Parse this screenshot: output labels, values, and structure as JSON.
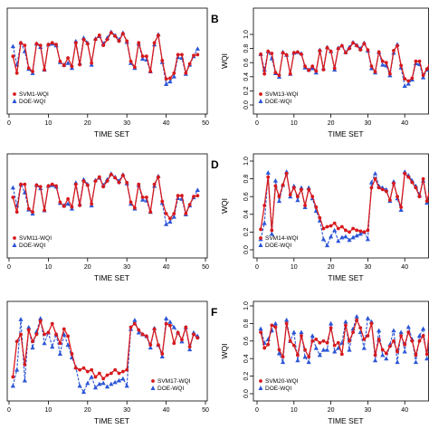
{
  "colors": {
    "svm": "#d7191c",
    "doe": "#2b55d6",
    "axis": "#000000",
    "background": "#ffffff"
  },
  "chart_data": [
    {
      "type": "line",
      "panel_label": "",
      "xlabel": "TIME SET",
      "ylabel": "",
      "xlim": [
        0,
        50
      ],
      "ylim": [
        0,
        1
      ],
      "xticks": [
        "0",
        "10",
        "20",
        "30",
        "40",
        "50"
      ],
      "yticks": [],
      "legend": {
        "position": "bottom-left"
      },
      "x": [
        1,
        2,
        3,
        4,
        5,
        6,
        7,
        8,
        9,
        10,
        11,
        12,
        13,
        14,
        15,
        16,
        17,
        18,
        19,
        20,
        21,
        22,
        23,
        24,
        25,
        26,
        27,
        28,
        29,
        30,
        31,
        32,
        33,
        34,
        35,
        36,
        37,
        38,
        39,
        40,
        41,
        42,
        43,
        44,
        45,
        46,
        47,
        48
      ],
      "series": [
        {
          "name": "SVM1-WQI",
          "marker": "circle",
          "color": "#d7191c",
          "values": [
            0.6,
            0.4,
            0.76,
            0.73,
            0.46,
            0.42,
            0.75,
            0.73,
            0.44,
            0.74,
            0.76,
            0.74,
            0.54,
            0.49,
            0.58,
            0.48,
            0.76,
            0.5,
            0.8,
            0.75,
            0.52,
            0.8,
            0.85,
            0.73,
            0.8,
            0.88,
            0.84,
            0.78,
            0.87,
            0.78,
            0.54,
            0.47,
            0.76,
            0.6,
            0.6,
            0.42,
            0.76,
            0.85,
            0.55,
            0.33,
            0.34,
            0.4,
            0.62,
            0.62,
            0.4,
            0.51,
            0.61,
            0.62
          ]
        },
        {
          "name": "DOE-WQI",
          "marker": "triangle",
          "color": "#2b55d6",
          "values": [
            0.72,
            0.5,
            0.76,
            0.66,
            0.45,
            0.4,
            0.75,
            0.71,
            0.44,
            0.74,
            0.75,
            0.73,
            0.53,
            0.5,
            0.52,
            0.46,
            0.78,
            0.52,
            0.82,
            0.76,
            0.5,
            0.81,
            0.84,
            0.75,
            0.82,
            0.89,
            0.85,
            0.8,
            0.88,
            0.77,
            0.52,
            0.46,
            0.75,
            0.57,
            0.56,
            0.42,
            0.74,
            0.86,
            0.53,
            0.27,
            0.3,
            0.36,
            0.59,
            0.58,
            0.39,
            0.5,
            0.6,
            0.69
          ]
        }
      ]
    },
    {
      "type": "line",
      "panel_label": "B",
      "xlabel": "TIME SET",
      "ylabel": "WQI",
      "xlim": [
        0,
        50
      ],
      "ylim": [
        0,
        1
      ],
      "xticks": [
        "0",
        "10",
        "20",
        "30",
        "40",
        "50"
      ],
      "yticks": [
        "0.0",
        "0.2",
        "0.4",
        "0.6",
        "0.8",
        "1.0"
      ],
      "legend": {
        "position": "bottom-left"
      },
      "x": [
        1,
        2,
        3,
        4,
        5,
        6,
        7,
        8,
        9,
        10,
        11,
        12,
        13,
        14,
        15,
        16,
        17,
        18,
        19,
        20,
        21,
        22,
        23,
        24,
        25,
        26,
        27,
        28,
        29,
        30,
        31,
        32,
        33,
        34,
        35,
        36,
        37,
        38,
        39,
        40,
        41,
        42,
        43,
        44,
        45,
        46,
        47,
        48
      ],
      "series": [
        {
          "name": "SVM13-WQI",
          "marker": "circle",
          "color": "#d7191c",
          "values": [
            0.72,
            0.44,
            0.76,
            0.73,
            0.46,
            0.42,
            0.74,
            0.71,
            0.44,
            0.74,
            0.75,
            0.72,
            0.55,
            0.49,
            0.55,
            0.48,
            0.77,
            0.5,
            0.81,
            0.76,
            0.52,
            0.8,
            0.84,
            0.74,
            0.8,
            0.88,
            0.84,
            0.78,
            0.87,
            0.78,
            0.55,
            0.47,
            0.75,
            0.62,
            0.6,
            0.44,
            0.77,
            0.84,
            0.56,
            0.37,
            0.34,
            0.38,
            0.62,
            0.62,
            0.42,
            0.51,
            0.61,
            0.63
          ]
        },
        {
          "name": "DOE-WQI",
          "marker": "triangle",
          "color": "#2b55d6",
          "values": [
            0.72,
            0.5,
            0.76,
            0.66,
            0.45,
            0.4,
            0.75,
            0.71,
            0.44,
            0.74,
            0.75,
            0.73,
            0.53,
            0.5,
            0.52,
            0.46,
            0.78,
            0.52,
            0.82,
            0.76,
            0.5,
            0.81,
            0.84,
            0.75,
            0.82,
            0.89,
            0.85,
            0.8,
            0.88,
            0.77,
            0.52,
            0.46,
            0.75,
            0.57,
            0.56,
            0.42,
            0.74,
            0.86,
            0.53,
            0.27,
            0.3,
            0.36,
            0.59,
            0.58,
            0.39,
            0.5,
            0.6,
            0.69
          ]
        }
      ]
    },
    {
      "type": "line",
      "panel_label": "",
      "xlabel": "TIME SET",
      "ylabel": "",
      "xlim": [
        0,
        50
      ],
      "ylim": [
        0,
        1
      ],
      "xticks": [
        "0",
        "10",
        "20",
        "30",
        "40",
        "50"
      ],
      "yticks": [],
      "legend": {
        "position": "bottom-left"
      },
      "x": [
        1,
        2,
        3,
        4,
        5,
        6,
        7,
        8,
        9,
        10,
        11,
        12,
        13,
        14,
        15,
        16,
        17,
        18,
        19,
        20,
        21,
        22,
        23,
        24,
        25,
        26,
        27,
        28,
        29,
        30,
        31,
        32,
        33,
        34,
        35,
        36,
        37,
        38,
        39,
        40,
        41,
        42,
        43,
        44,
        45,
        46,
        47,
        48
      ],
      "series": [
        {
          "name": "SVM11-WQI",
          "marker": "circle",
          "color": "#d7191c",
          "values": [
            0.6,
            0.42,
            0.76,
            0.76,
            0.46,
            0.42,
            0.75,
            0.73,
            0.44,
            0.74,
            0.76,
            0.74,
            0.54,
            0.49,
            0.58,
            0.48,
            0.76,
            0.5,
            0.8,
            0.75,
            0.52,
            0.8,
            0.85,
            0.73,
            0.8,
            0.88,
            0.84,
            0.78,
            0.87,
            0.78,
            0.54,
            0.47,
            0.76,
            0.6,
            0.6,
            0.42,
            0.76,
            0.85,
            0.55,
            0.4,
            0.34,
            0.4,
            0.62,
            0.62,
            0.4,
            0.51,
            0.61,
            0.62
          ]
        },
        {
          "name": "DOE-WQI",
          "marker": "triangle",
          "color": "#2b55d6",
          "values": [
            0.72,
            0.5,
            0.76,
            0.66,
            0.45,
            0.4,
            0.75,
            0.71,
            0.44,
            0.74,
            0.75,
            0.73,
            0.53,
            0.5,
            0.52,
            0.46,
            0.78,
            0.52,
            0.82,
            0.76,
            0.5,
            0.81,
            0.84,
            0.75,
            0.82,
            0.89,
            0.85,
            0.8,
            0.88,
            0.77,
            0.52,
            0.46,
            0.75,
            0.57,
            0.56,
            0.42,
            0.74,
            0.86,
            0.53,
            0.27,
            0.3,
            0.36,
            0.59,
            0.58,
            0.39,
            0.5,
            0.6,
            0.69
          ]
        }
      ]
    },
    {
      "type": "line",
      "panel_label": "D",
      "xlabel": "TIME SET",
      "ylabel": "WQI",
      "xlim": [
        0,
        50
      ],
      "ylim": [
        0,
        1
      ],
      "xticks": [
        "0",
        "10",
        "20",
        "30",
        "40",
        "50"
      ],
      "yticks": [
        "0.0",
        "0.2",
        "0.4",
        "0.6",
        "0.8",
        "1.0"
      ],
      "legend": {
        "position": "bottom-left"
      },
      "x": [
        1,
        2,
        3,
        4,
        5,
        6,
        7,
        8,
        9,
        10,
        11,
        12,
        13,
        14,
        15,
        16,
        17,
        18,
        19,
        20,
        21,
        22,
        23,
        24,
        25,
        26,
        27,
        28,
        29,
        30,
        31,
        32,
        33,
        34,
        35,
        36,
        37,
        38,
        39,
        40,
        41,
        42,
        43,
        44,
        45,
        46,
        47,
        48
      ],
      "series": [
        {
          "name": "SVM14-WQI",
          "marker": "circle",
          "color": "#d7191c",
          "values": [
            0.23,
            0.5,
            0.82,
            0.22,
            0.72,
            0.6,
            0.73,
            0.86,
            0.62,
            0.7,
            0.6,
            0.68,
            0.5,
            0.68,
            0.6,
            0.48,
            0.36,
            0.24,
            0.26,
            0.27,
            0.3,
            0.24,
            0.26,
            0.22,
            0.2,
            0.24,
            0.22,
            0.21,
            0.2,
            0.22,
            0.7,
            0.8,
            0.7,
            0.68,
            0.66,
            0.56,
            0.75,
            0.6,
            0.48,
            0.86,
            0.82,
            0.76,
            0.7,
            0.6,
            0.8,
            0.55,
            0.7,
            0.52
          ]
        },
        {
          "name": "DOE-WQI",
          "marker": "triangle",
          "color": "#2b55d6",
          "values": [
            0.12,
            0.3,
            0.87,
            0.18,
            0.78,
            0.55,
            0.73,
            0.88,
            0.6,
            0.72,
            0.56,
            0.7,
            0.48,
            0.7,
            0.58,
            0.44,
            0.33,
            0.12,
            0.05,
            0.15,
            0.22,
            0.1,
            0.14,
            0.15,
            0.11,
            0.14,
            0.16,
            0.18,
            0.2,
            0.12,
            0.76,
            0.86,
            0.72,
            0.7,
            0.68,
            0.55,
            0.77,
            0.58,
            0.45,
            0.88,
            0.84,
            0.78,
            0.72,
            0.62,
            0.78,
            0.53,
            0.72,
            0.4
          ]
        }
      ]
    },
    {
      "type": "line",
      "panel_label": "",
      "xlabel": "TIME SET",
      "ylabel": "",
      "xlim": [
        0,
        50
      ],
      "ylim": [
        0,
        1
      ],
      "xticks": [
        "0",
        "10",
        "20",
        "30",
        "40",
        "50"
      ],
      "yticks": [],
      "legend": {
        "position": "bottom-right"
      },
      "x": [
        1,
        2,
        3,
        4,
        5,
        6,
        7,
        8,
        9,
        10,
        11,
        12,
        13,
        14,
        15,
        16,
        17,
        18,
        19,
        20,
        21,
        22,
        23,
        24,
        25,
        26,
        27,
        28,
        29,
        30,
        31,
        32,
        33,
        34,
        35,
        36,
        37,
        38,
        39,
        40,
        41,
        42,
        43,
        44,
        45,
        46,
        47,
        48
      ],
      "series": [
        {
          "name": "SVM17-WQI",
          "marker": "circle",
          "color": "#d7191c",
          "values": [
            0.22,
            0.62,
            0.7,
            0.36,
            0.75,
            0.62,
            0.7,
            0.85,
            0.7,
            0.72,
            0.82,
            0.7,
            0.6,
            0.76,
            0.68,
            0.48,
            0.32,
            0.3,
            0.32,
            0.28,
            0.3,
            0.22,
            0.26,
            0.2,
            0.24,
            0.26,
            0.3,
            0.26,
            0.28,
            0.3,
            0.78,
            0.82,
            0.75,
            0.7,
            0.68,
            0.58,
            0.76,
            0.58,
            0.48,
            0.82,
            0.8,
            0.6,
            0.72,
            0.64,
            0.78,
            0.56,
            0.7,
            0.66
          ]
        },
        {
          "name": "DOE-WQI",
          "marker": "triangle",
          "color": "#2b55d6",
          "values": [
            0.12,
            0.3,
            0.87,
            0.18,
            0.78,
            0.55,
            0.73,
            0.88,
            0.6,
            0.72,
            0.56,
            0.7,
            0.48,
            0.7,
            0.58,
            0.44,
            0.33,
            0.12,
            0.05,
            0.15,
            0.22,
            0.1,
            0.14,
            0.15,
            0.11,
            0.14,
            0.16,
            0.18,
            0.2,
            0.12,
            0.76,
            0.86,
            0.72,
            0.7,
            0.68,
            0.55,
            0.77,
            0.58,
            0.45,
            0.88,
            0.84,
            0.78,
            0.72,
            0.62,
            0.78,
            0.53,
            0.72,
            0.68
          ]
        }
      ]
    },
    {
      "type": "line",
      "panel_label": "F",
      "xlabel": "TIME SET",
      "ylabel": "WQI",
      "xlim": [
        0,
        50
      ],
      "ylim": [
        0,
        1
      ],
      "xticks": [
        "0",
        "10",
        "20",
        "30",
        "40",
        "50"
      ],
      "yticks": [
        "0.0",
        "0.2",
        "0.4",
        "0.6",
        "0.8",
        "1.0"
      ],
      "legend": {
        "position": "bottom-left"
      },
      "x": [
        1,
        2,
        3,
        4,
        5,
        6,
        7,
        8,
        9,
        10,
        11,
        12,
        13,
        14,
        15,
        16,
        17,
        18,
        19,
        20,
        21,
        22,
        23,
        24,
        25,
        26,
        27,
        28,
        29,
        30,
        31,
        32,
        33,
        34,
        35,
        36,
        37,
        38,
        39,
        40,
        41,
        42,
        43,
        44,
        45,
        46,
        47,
        48
      ],
      "series": [
        {
          "name": "SVM20-WQI",
          "marker": "circle",
          "color": "#d7191c",
          "values": [
            0.7,
            0.52,
            0.56,
            0.78,
            0.76,
            0.5,
            0.42,
            0.8,
            0.6,
            0.55,
            0.44,
            0.66,
            0.5,
            0.42,
            0.6,
            0.62,
            0.58,
            0.6,
            0.58,
            0.75,
            0.55,
            0.58,
            0.45,
            0.78,
            0.6,
            0.7,
            0.84,
            0.75,
            0.62,
            0.66,
            0.8,
            0.44,
            0.62,
            0.5,
            0.46,
            0.54,
            0.6,
            0.48,
            0.66,
            0.56,
            0.7,
            0.6,
            0.44,
            0.6,
            0.66,
            0.45,
            0.85,
            0.7
          ]
        },
        {
          "name": "DOE-WQI",
          "marker": "triangle",
          "color": "#2b55d6",
          "values": [
            0.74,
            0.58,
            0.62,
            0.72,
            0.8,
            0.46,
            0.36,
            0.84,
            0.6,
            0.7,
            0.38,
            0.7,
            0.42,
            0.36,
            0.66,
            0.52,
            0.44,
            0.5,
            0.5,
            0.8,
            0.48,
            0.52,
            0.58,
            0.82,
            0.5,
            0.74,
            0.88,
            0.7,
            0.52,
            0.86,
            0.82,
            0.38,
            0.72,
            0.44,
            0.4,
            0.56,
            0.72,
            0.36,
            0.7,
            0.48,
            0.76,
            0.62,
            0.36,
            0.66,
            0.74,
            0.4,
            0.78,
            0.75
          ]
        }
      ]
    }
  ]
}
